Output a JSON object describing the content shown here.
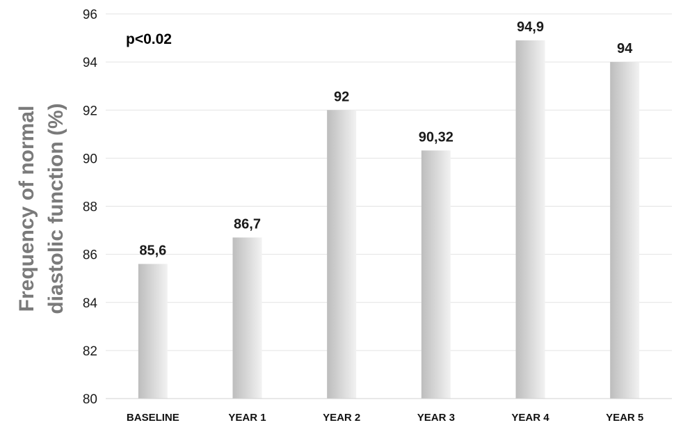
{
  "chart_data": {
    "type": "bar",
    "categories": [
      "BASELINE",
      "YEAR 1",
      "YEAR 2",
      "YEAR 3",
      "YEAR 4",
      "YEAR 5"
    ],
    "values": [
      85.6,
      86.7,
      92,
      90.32,
      94.9,
      94
    ],
    "value_labels": [
      "85,6",
      "86,7",
      "92",
      "90,32",
      "94,9",
      "94"
    ],
    "title": "",
    "xlabel": "",
    "ylabel_lines": [
      "Frequency of normal",
      "diastolic function (%)"
    ],
    "ylim": [
      80,
      96
    ],
    "yticks": [
      80,
      82,
      84,
      86,
      88,
      90,
      92,
      94,
      96
    ],
    "grid": true,
    "legend": "none",
    "annotation": "p<0.02",
    "colors": {
      "bar_dark": "#c2c2c2",
      "bar_light": "#f4f4f4",
      "grid": "#e3e3e3",
      "axis_label": "#7a7a7a"
    }
  }
}
